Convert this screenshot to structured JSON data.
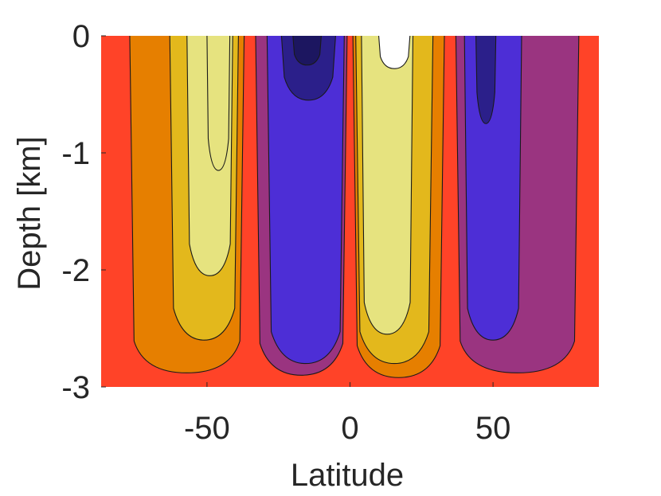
{
  "chart_data": {
    "type": "contour",
    "title": "",
    "xlabel": "Latitude",
    "ylabel": "Depth [km]",
    "xlim": [
      -87,
      87
    ],
    "ylim": [
      -3,
      0
    ],
    "xticks": [
      -50,
      0,
      50
    ],
    "xtick_labels": [
      "-50",
      "0",
      "50"
    ],
    "yticks": [
      0,
      -1,
      -2,
      -3
    ],
    "ytick_labels": [
      "0",
      "-1",
      "-2",
      "-3"
    ],
    "grid": false,
    "legend": "none",
    "colormap": "diverging purple-blue to red to yellow-white",
    "background_fill": "#ff4328",
    "cells": [
      {
        "name": "southern-positive-cell",
        "center_x": -48,
        "bottom_depth": -2.9,
        "levels": [
          {
            "color": "#e67f00",
            "x_range": [
              -77,
              -37
            ],
            "bottom": -2.88
          },
          {
            "color": "#e3b81c",
            "x_range": [
              -63,
              -39
            ],
            "bottom": -2.6
          },
          {
            "color": "#e6e37f",
            "x_range": [
              -57,
              -41
            ],
            "bottom": -2.05
          },
          {
            "color": "#e6e37f",
            "x_range": [
              -50,
              -42
            ],
            "bottom": -1.15
          }
        ]
      },
      {
        "name": "southern-tropical-negative-cell",
        "center_x": -15,
        "bottom_depth": -2.9,
        "levels": [
          {
            "color": "#9a3480",
            "x_range": [
              -33,
              -1
            ],
            "bottom": -2.9
          },
          {
            "color": "#4d2ed6",
            "x_range": [
              -29,
              -2
            ],
            "bottom": -2.8
          },
          {
            "color": "#2b1f8a",
            "x_range": [
              -24,
              -5
            ],
            "bottom": -0.55
          },
          {
            "color": "#1c1660",
            "x_range": [
              -20,
              -10
            ],
            "bottom": -0.25
          }
        ]
      },
      {
        "name": "northern-tropical-positive-cell",
        "center_x": 15,
        "bottom_depth": -2.9,
        "levels": [
          {
            "color": "#e67f00",
            "x_range": [
              1,
              33
            ],
            "bottom": -2.92
          },
          {
            "color": "#e3b81c",
            "x_range": [
              2,
              29
            ],
            "bottom": -2.8
          },
          {
            "color": "#e6e37f",
            "x_range": [
              4,
              22
            ],
            "bottom": -2.55
          },
          {
            "color": "#ffffff",
            "x_range": [
              10,
              21
            ],
            "bottom": -0.28
          }
        ]
      },
      {
        "name": "northern-negative-cell",
        "center_x": 48,
        "bottom_depth": -2.9,
        "levels": [
          {
            "color": "#9a3480",
            "x_range": [
              37,
              80
            ],
            "bottom": -2.88
          },
          {
            "color": "#4d2ed6",
            "x_range": [
              40,
              60
            ],
            "bottom": -2.6
          },
          {
            "color": "#2b1f8a",
            "x_range": [
              44,
              51
            ],
            "bottom": -0.75
          }
        ]
      }
    ]
  }
}
